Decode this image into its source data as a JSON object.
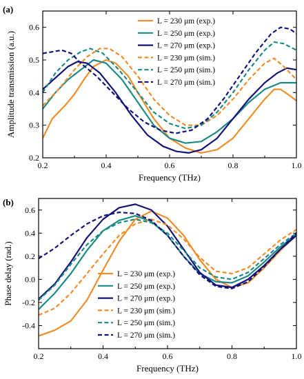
{
  "chart_data": [
    {
      "type": "line",
      "panel_label": "(a)",
      "xlabel": "Frequency (THz)",
      "ylabel": "Amplitude transmission (a.u.)",
      "xlim": [
        0.2,
        1.0
      ],
      "ylim": [
        0.2,
        0.65
      ],
      "xticks": [
        0.2,
        0.4,
        0.6,
        0.8,
        1.0
      ],
      "yticks": [
        0.2,
        0.3,
        0.4,
        0.5,
        0.6
      ],
      "xtick_labels": [
        "0.2",
        "0.4",
        "0.6",
        "0.8",
        "1.0"
      ],
      "ytick_labels": [
        "0.2",
        "0.3",
        "0.4",
        "0.5",
        "0.6"
      ],
      "grid": false,
      "legend_position": "top-right",
      "series": [
        {
          "name": "L = 230 μm (exp.)",
          "color": "#f28c28",
          "dash": "solid",
          "points": [
            [
              0.2,
              0.26
            ],
            [
              0.23,
              0.32
            ],
            [
              0.27,
              0.36
            ],
            [
              0.3,
              0.395
            ],
            [
              0.33,
              0.44
            ],
            [
              0.36,
              0.48
            ],
            [
              0.4,
              0.5
            ],
            [
              0.43,
              0.49
            ],
            [
              0.47,
              0.45
            ],
            [
              0.5,
              0.4
            ],
            [
              0.55,
              0.32
            ],
            [
              0.6,
              0.26
            ],
            [
              0.65,
              0.23
            ],
            [
              0.7,
              0.215
            ],
            [
              0.75,
              0.225
            ],
            [
              0.8,
              0.26
            ],
            [
              0.85,
              0.32
            ],
            [
              0.9,
              0.38
            ],
            [
              0.93,
              0.41
            ],
            [
              0.95,
              0.41
            ],
            [
              0.98,
              0.39
            ],
            [
              1.0,
              0.375
            ]
          ]
        },
        {
          "name": "L = 250 μm (exp.)",
          "color": "#1a8a86",
          "dash": "solid",
          "points": [
            [
              0.2,
              0.35
            ],
            [
              0.24,
              0.4
            ],
            [
              0.28,
              0.44
            ],
            [
              0.32,
              0.47
            ],
            [
              0.36,
              0.5
            ],
            [
              0.4,
              0.49
            ],
            [
              0.45,
              0.44
            ],
            [
              0.5,
              0.37
            ],
            [
              0.55,
              0.3
            ],
            [
              0.6,
              0.26
            ],
            [
              0.65,
              0.245
            ],
            [
              0.7,
              0.25
            ],
            [
              0.75,
              0.28
            ],
            [
              0.8,
              0.32
            ],
            [
              0.85,
              0.37
            ],
            [
              0.9,
              0.41
            ],
            [
              0.95,
              0.43
            ],
            [
              1.0,
              0.43
            ]
          ]
        },
        {
          "name": "L = 270 μm (exp.)",
          "color": "#12127a",
          "dash": "solid",
          "points": [
            [
              0.2,
              0.41
            ],
            [
              0.24,
              0.445
            ],
            [
              0.28,
              0.48
            ],
            [
              0.31,
              0.495
            ],
            [
              0.34,
              0.49
            ],
            [
              0.38,
              0.46
            ],
            [
              0.43,
              0.4
            ],
            [
              0.48,
              0.33
            ],
            [
              0.53,
              0.27
            ],
            [
              0.58,
              0.235
            ],
            [
              0.62,
              0.22
            ],
            [
              0.66,
              0.215
            ],
            [
              0.7,
              0.225
            ],
            [
              0.75,
              0.26
            ],
            [
              0.8,
              0.32
            ],
            [
              0.85,
              0.38
            ],
            [
              0.9,
              0.43
            ],
            [
              0.94,
              0.46
            ],
            [
              0.97,
              0.475
            ],
            [
              1.0,
              0.47
            ]
          ]
        },
        {
          "name": "L = 230 μm (sim.)",
          "color": "#f28c28",
          "dash": "dashed",
          "points": [
            [
              0.2,
              0.36
            ],
            [
              0.25,
              0.41
            ],
            [
              0.3,
              0.47
            ],
            [
              0.34,
              0.51
            ],
            [
              0.38,
              0.535
            ],
            [
              0.41,
              0.535
            ],
            [
              0.45,
              0.51
            ],
            [
              0.5,
              0.45
            ],
            [
              0.55,
              0.38
            ],
            [
              0.6,
              0.33
            ],
            [
              0.65,
              0.3
            ],
            [
              0.7,
              0.3
            ],
            [
              0.75,
              0.33
            ],
            [
              0.8,
              0.38
            ],
            [
              0.85,
              0.44
            ],
            [
              0.9,
              0.49
            ],
            [
              0.93,
              0.505
            ],
            [
              0.96,
              0.48
            ],
            [
              1.0,
              0.44
            ]
          ]
        },
        {
          "name": "L = 250 μm (sim.)",
          "color": "#1a8a86",
          "dash": "dashed",
          "points": [
            [
              0.2,
              0.4
            ],
            [
              0.24,
              0.46
            ],
            [
              0.28,
              0.5
            ],
            [
              0.32,
              0.525
            ],
            [
              0.35,
              0.535
            ],
            [
              0.39,
              0.52
            ],
            [
              0.44,
              0.47
            ],
            [
              0.5,
              0.4
            ],
            [
              0.55,
              0.34
            ],
            [
              0.6,
              0.305
            ],
            [
              0.65,
              0.29
            ],
            [
              0.7,
              0.3
            ],
            [
              0.75,
              0.34
            ],
            [
              0.8,
              0.4
            ],
            [
              0.85,
              0.47
            ],
            [
              0.9,
              0.53
            ],
            [
              0.93,
              0.555
            ],
            [
              0.96,
              0.55
            ],
            [
              1.0,
              0.53
            ]
          ]
        },
        {
          "name": "L = 270 μm (sim.)",
          "color": "#12127a",
          "dash": "dashed",
          "points": [
            [
              0.2,
              0.52
            ],
            [
              0.23,
              0.525
            ],
            [
              0.26,
              0.53
            ],
            [
              0.29,
              0.52
            ],
            [
              0.32,
              0.49
            ],
            [
              0.37,
              0.45
            ],
            [
              0.42,
              0.4
            ],
            [
              0.47,
              0.35
            ],
            [
              0.52,
              0.31
            ],
            [
              0.57,
              0.285
            ],
            [
              0.62,
              0.275
            ],
            [
              0.67,
              0.285
            ],
            [
              0.72,
              0.32
            ],
            [
              0.77,
              0.38
            ],
            [
              0.82,
              0.45
            ],
            [
              0.87,
              0.52
            ],
            [
              0.92,
              0.58
            ],
            [
              0.95,
              0.6
            ],
            [
              0.98,
              0.595
            ],
            [
              1.0,
              0.58
            ]
          ]
        }
      ]
    },
    {
      "type": "line",
      "panel_label": "(b)",
      "xlabel": "Frequency (THz)",
      "ylabel": "Phase delay (rad.)",
      "xlim": [
        0.2,
        1.0
      ],
      "ylim": [
        -0.6,
        0.7
      ],
      "xticks": [
        0.2,
        0.4,
        0.6,
        0.8,
        1.0
      ],
      "yticks": [
        -0.4,
        -0.2,
        0.0,
        0.2,
        0.4,
        0.6
      ],
      "xtick_labels": [
        "0.2",
        "0.4",
        "0.6",
        "0.8",
        "1.0"
      ],
      "ytick_labels": [
        "-0.4",
        "-0.2",
        "0.0",
        "0.2",
        "0.4",
        "0.6"
      ],
      "grid": false,
      "legend_position": "bottom-center",
      "series": [
        {
          "name": "L = 230 μm (exp.)",
          "color": "#f28c28",
          "dash": "solid",
          "points": [
            [
              0.2,
              -0.49
            ],
            [
              0.25,
              -0.44
            ],
            [
              0.3,
              -0.36
            ],
            [
              0.35,
              -0.18
            ],
            [
              0.4,
              0.08
            ],
            [
              0.45,
              0.33
            ],
            [
              0.5,
              0.52
            ],
            [
              0.55,
              0.59
            ],
            [
              0.6,
              0.53
            ],
            [
              0.65,
              0.38
            ],
            [
              0.7,
              0.17
            ],
            [
              0.75,
              0.0
            ],
            [
              0.8,
              -0.07
            ],
            [
              0.85,
              -0.03
            ],
            [
              0.9,
              0.1
            ],
            [
              0.95,
              0.25
            ],
            [
              1.0,
              0.38
            ]
          ]
        },
        {
          "name": "L = 250 μm (exp.)",
          "color": "#1a8a86",
          "dash": "solid",
          "points": [
            [
              0.2,
              -0.26
            ],
            [
              0.25,
              -0.12
            ],
            [
              0.3,
              0.05
            ],
            [
              0.35,
              0.25
            ],
            [
              0.4,
              0.42
            ],
            [
              0.45,
              0.51
            ],
            [
              0.5,
              0.55
            ],
            [
              0.55,
              0.5
            ],
            [
              0.6,
              0.38
            ],
            [
              0.65,
              0.2
            ],
            [
              0.7,
              0.05
            ],
            [
              0.75,
              -0.02
            ],
            [
              0.8,
              -0.03
            ],
            [
              0.85,
              0.03
            ],
            [
              0.9,
              0.15
            ],
            [
              0.95,
              0.28
            ],
            [
              1.0,
              0.39
            ]
          ]
        },
        {
          "name": "L = 270 μm (exp.)",
          "color": "#12127a",
          "dash": "solid",
          "points": [
            [
              0.2,
              -0.17
            ],
            [
              0.25,
              -0.04
            ],
            [
              0.3,
              0.15
            ],
            [
              0.35,
              0.36
            ],
            [
              0.4,
              0.52
            ],
            [
              0.45,
              0.62
            ],
            [
              0.5,
              0.65
            ],
            [
              0.55,
              0.6
            ],
            [
              0.6,
              0.46
            ],
            [
              0.65,
              0.26
            ],
            [
              0.7,
              0.06
            ],
            [
              0.75,
              -0.05
            ],
            [
              0.8,
              -0.07
            ],
            [
              0.85,
              0.0
            ],
            [
              0.9,
              0.12
            ],
            [
              0.95,
              0.26
            ],
            [
              1.0,
              0.38
            ]
          ]
        },
        {
          "name": "L = 230 μm (sim.)",
          "color": "#f28c28",
          "dash": "dashed",
          "points": [
            [
              0.2,
              -0.31
            ],
            [
              0.25,
              -0.25
            ],
            [
              0.3,
              -0.12
            ],
            [
              0.35,
              0.05
            ],
            [
              0.4,
              0.22
            ],
            [
              0.45,
              0.38
            ],
            [
              0.5,
              0.48
            ],
            [
              0.55,
              0.52
            ],
            [
              0.6,
              0.47
            ],
            [
              0.65,
              0.35
            ],
            [
              0.7,
              0.19
            ],
            [
              0.75,
              0.07
            ],
            [
              0.8,
              0.05
            ],
            [
              0.85,
              0.1
            ],
            [
              0.9,
              0.22
            ],
            [
              0.95,
              0.34
            ],
            [
              1.0,
              0.43
            ]
          ]
        },
        {
          "name": "L = 250 μm (sim.)",
          "color": "#1a8a86",
          "dash": "dashed",
          "points": [
            [
              0.2,
              -0.18
            ],
            [
              0.25,
              -0.05
            ],
            [
              0.3,
              0.13
            ],
            [
              0.35,
              0.3
            ],
            [
              0.4,
              0.42
            ],
            [
              0.45,
              0.49
            ],
            [
              0.5,
              0.52
            ],
            [
              0.55,
              0.49
            ],
            [
              0.6,
              0.4
            ],
            [
              0.65,
              0.25
            ],
            [
              0.7,
              0.1
            ],
            [
              0.75,
              0.02
            ],
            [
              0.8,
              0.0
            ],
            [
              0.85,
              0.06
            ],
            [
              0.9,
              0.18
            ],
            [
              0.95,
              0.3
            ],
            [
              1.0,
              0.4
            ]
          ]
        },
        {
          "name": "L = 270 μm (sim.)",
          "color": "#12127a",
          "dash": "dashed",
          "points": [
            [
              0.2,
              0.18
            ],
            [
              0.25,
              0.27
            ],
            [
              0.3,
              0.38
            ],
            [
              0.35,
              0.48
            ],
            [
              0.4,
              0.55
            ],
            [
              0.45,
              0.58
            ],
            [
              0.5,
              0.57
            ],
            [
              0.55,
              0.51
            ],
            [
              0.6,
              0.38
            ],
            [
              0.65,
              0.2
            ],
            [
              0.7,
              0.04
            ],
            [
              0.75,
              -0.06
            ],
            [
              0.8,
              -0.08
            ],
            [
              0.85,
              -0.02
            ],
            [
              0.9,
              0.11
            ],
            [
              0.95,
              0.26
            ],
            [
              1.0,
              0.4
            ]
          ]
        }
      ]
    }
  ]
}
